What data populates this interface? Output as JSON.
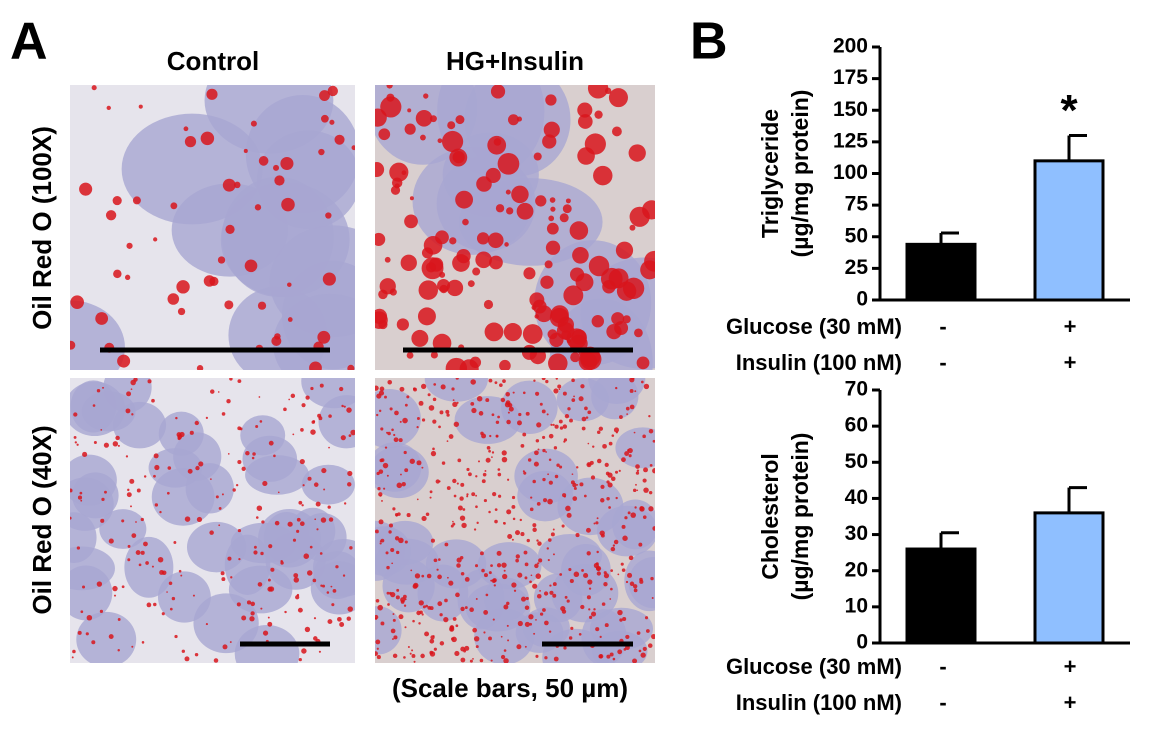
{
  "panel_labels": [
    "A",
    "B"
  ],
  "column_titles": [
    "Control",
    "HG+Insulin"
  ],
  "row_titles": [
    "Oil Red O (100X)",
    "Oil Red O (40X)"
  ],
  "scale_note": "(Scale bars, 50 µm)",
  "chart_data": [
    {
      "type": "bar",
      "ylabel": [
        "Triglyceride",
        "(µg/mg protein)"
      ],
      "values": [
        44,
        110
      ],
      "errors": [
        9,
        20
      ],
      "colors": [
        "#000000",
        "#8fbfff"
      ],
      "annotation": "*",
      "condition_rows": [
        {
          "label": "Glucose (30 mM)",
          "values": [
            "-",
            "+"
          ]
        },
        {
          "label": "Insulin (100 nM)",
          "values": [
            "-",
            "+"
          ]
        }
      ],
      "ylim": [
        0,
        200
      ],
      "yticks": [
        0,
        25,
        50,
        75,
        100,
        125,
        150,
        175,
        200
      ]
    },
    {
      "type": "bar",
      "ylabel": [
        "Cholesterol",
        "(µg/mg protein)"
      ],
      "values": [
        26,
        36
      ],
      "errors": [
        4.5,
        7
      ],
      "colors": [
        "#000000",
        "#8fbfff"
      ],
      "condition_rows": [
        {
          "label": "Glucose (30 mM)",
          "values": [
            "-",
            "+"
          ]
        },
        {
          "label": "Insulin (100 nM)",
          "values": [
            "-",
            "+"
          ]
        }
      ],
      "ylim": [
        0,
        70
      ],
      "yticks": [
        0,
        10,
        20,
        30,
        40,
        50,
        60,
        70
      ]
    }
  ]
}
